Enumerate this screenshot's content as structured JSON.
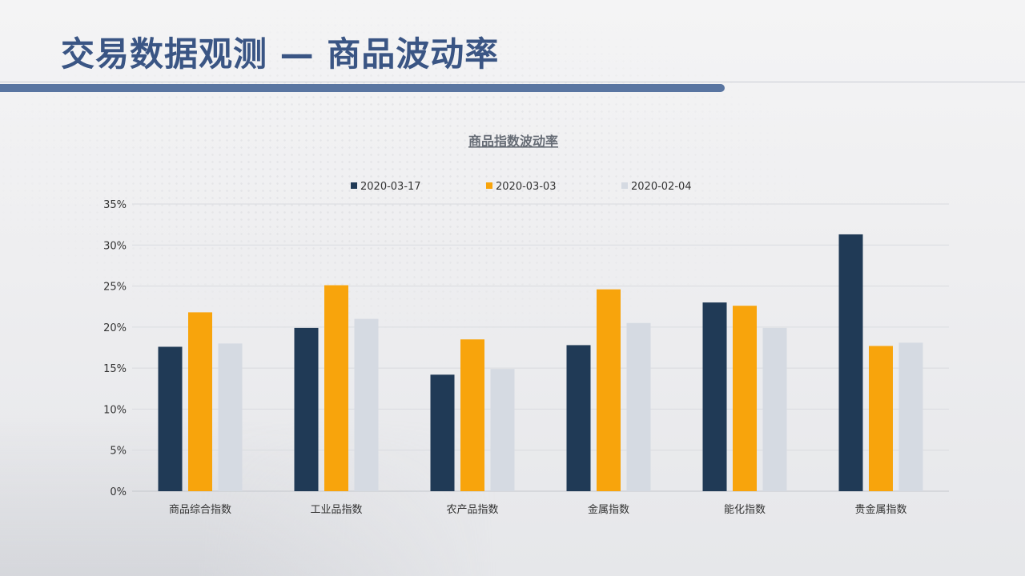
{
  "page": {
    "title": "交易数据观测 — 商品波动率"
  },
  "chart_data": {
    "type": "bar",
    "title": "商品指数波动率",
    "categories": [
      "商品综合指数",
      "工业品指数",
      "农产品指数",
      "金属指数",
      "能化指数",
      "贵金属指数"
    ],
    "series": [
      {
        "name": "2020-03-17",
        "color": "#203a56",
        "values": [
          17.6,
          19.9,
          14.2,
          17.8,
          23.0,
          31.3
        ]
      },
      {
        "name": "2020-03-03",
        "color": "#f8a40c",
        "values": [
          21.8,
          25.1,
          18.5,
          24.6,
          22.6,
          17.7
        ]
      },
      {
        "name": "2020-02-04",
        "color": "#d5dae2",
        "values": [
          18.0,
          21.0,
          14.9,
          20.5,
          19.9,
          18.1
        ]
      }
    ],
    "yticks": [
      "0%",
      "5%",
      "10%",
      "15%",
      "20%",
      "25%",
      "30%",
      "35%"
    ],
    "ylim": [
      0,
      35
    ],
    "grid": true,
    "legend_position": "top"
  }
}
